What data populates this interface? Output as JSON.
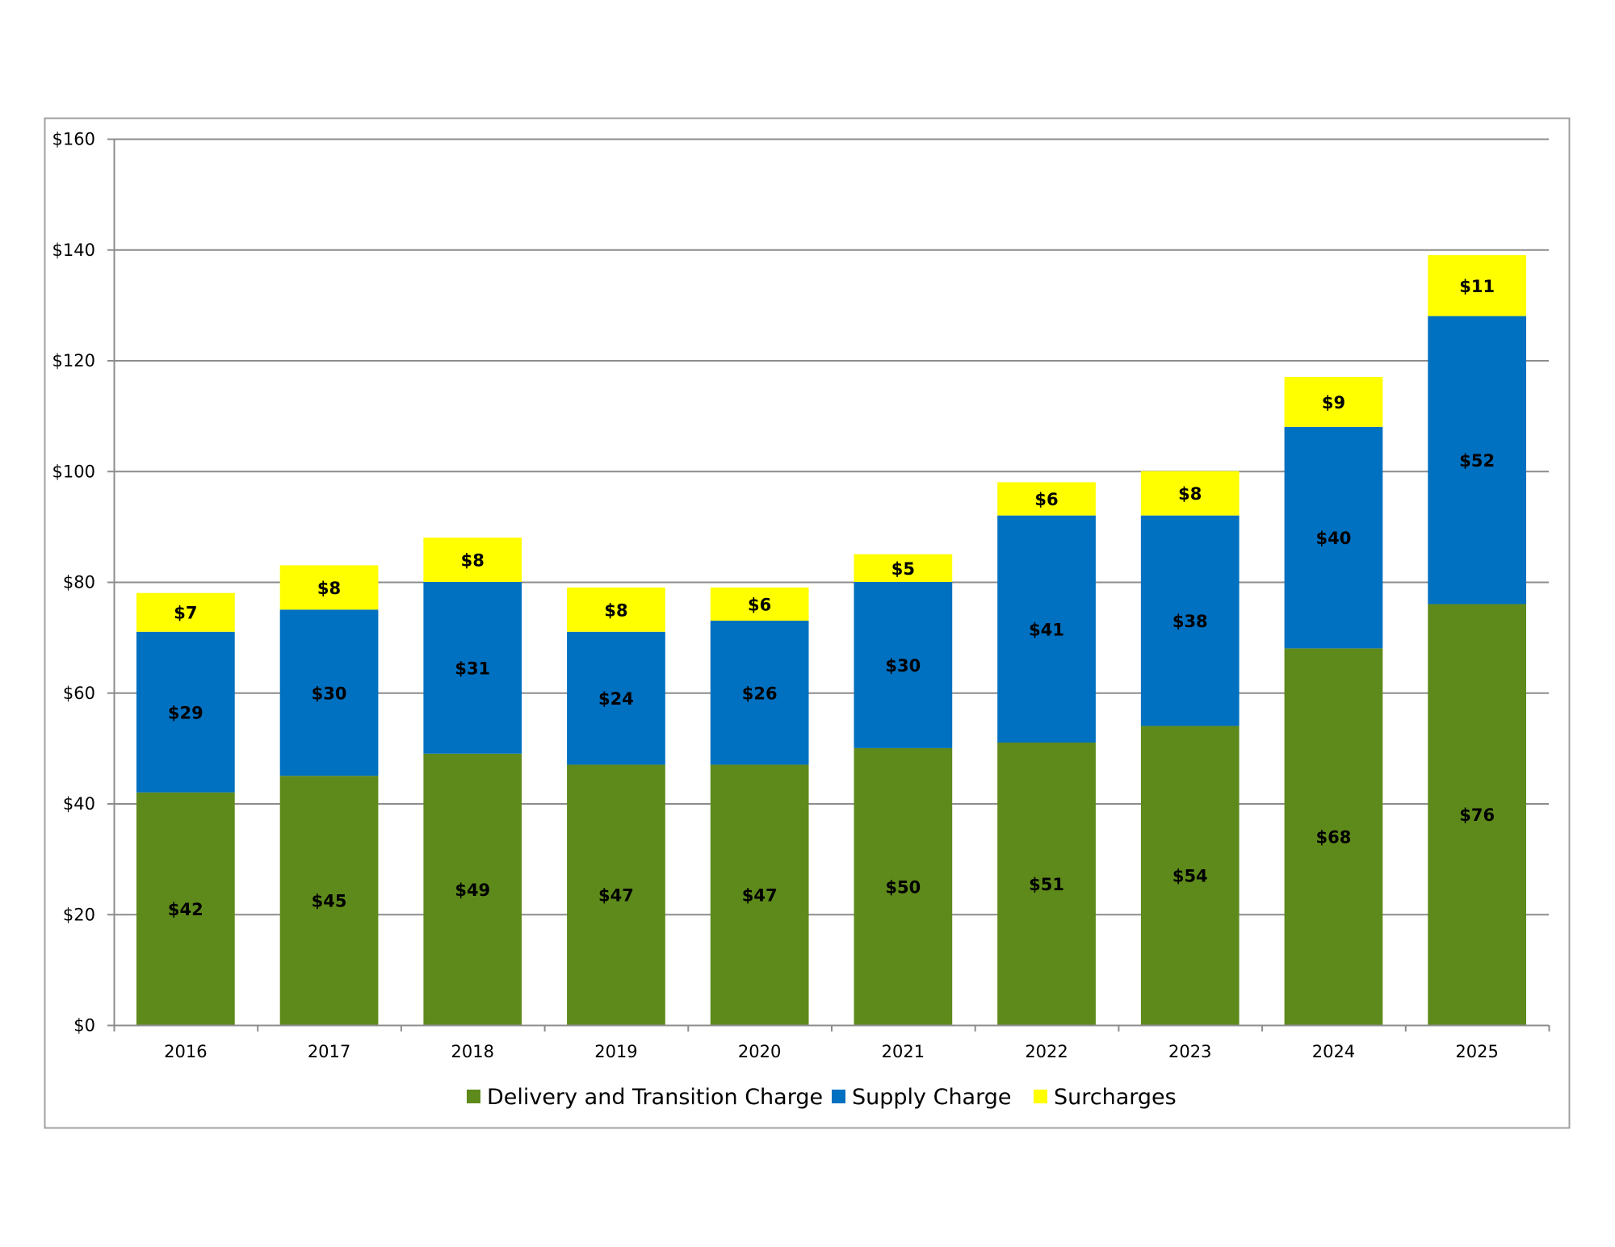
{
  "chart_data": {
    "type": "bar",
    "stacked": true,
    "title": "",
    "xlabel": "",
    "ylabel": "",
    "ylim": [
      0,
      160
    ],
    "yticks": [
      0,
      20,
      40,
      60,
      80,
      100,
      120,
      140,
      160
    ],
    "ytick_labels": [
      "$0",
      "$20",
      "$40",
      "$60",
      "$80",
      "$100",
      "$120",
      "$140",
      "$160"
    ],
    "grid": true,
    "legend_position": "bottom-center",
    "categories": [
      "2016",
      "2017",
      "2018",
      "2019",
      "2020",
      "2021",
      "2022",
      "2023",
      "2024",
      "2025"
    ],
    "series": [
      {
        "name": "Delivery and Transition Charge",
        "color": "#5E8A1B",
        "values": [
          42,
          45,
          49,
          47,
          47,
          50,
          51,
          54,
          68,
          76
        ],
        "labels": [
          "$42",
          "$45",
          "$49",
          "$47",
          "$47",
          "$50",
          "$51",
          "$54",
          "$68",
          "$76"
        ]
      },
      {
        "name": "Supply Charge",
        "color": "#0070C0",
        "values": [
          29,
          30,
          31,
          24,
          26,
          30,
          41,
          38,
          40,
          52
        ],
        "labels": [
          "$29",
          "$30",
          "$31",
          "$24",
          "$26",
          "$30",
          "$41",
          "$38",
          "$40",
          "$52"
        ]
      },
      {
        "name": "Surcharges",
        "color": "#FFFF00",
        "values": [
          7,
          8,
          8,
          8,
          6,
          5,
          6,
          8,
          9,
          11
        ],
        "labels": [
          "$7",
          "$8",
          "$8",
          "$8",
          "$6",
          "$5",
          "$6",
          "$8",
          "$9",
          "$11"
        ]
      }
    ]
  }
}
